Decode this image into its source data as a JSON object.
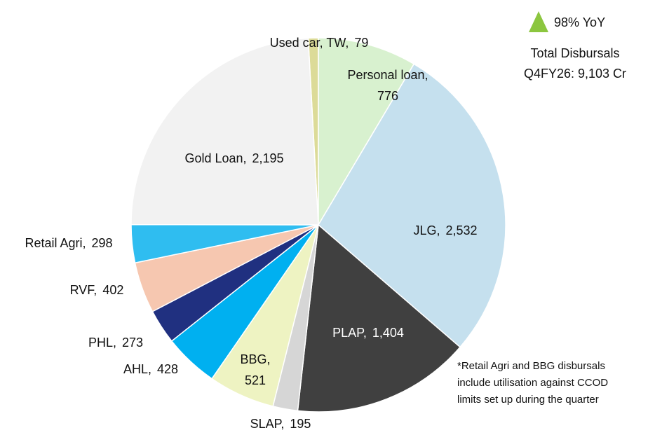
{
  "chart_data": {
    "type": "pie",
    "categories": [
      "Used car, TW,",
      "Personal loan,",
      "JLG,",
      "PLAP,",
      "SLAP,",
      "BBG,",
      "AHL,",
      "PHL,",
      "RVF,",
      "Retail Agri,",
      "Gold Loan,"
    ],
    "values": [
      79,
      776,
      2532,
      1404,
      195,
      521,
      428,
      273,
      402,
      298,
      2195
    ],
    "value_labels": [
      "79",
      "776",
      "2,532",
      "1,404",
      "195",
      "521",
      "428",
      "273",
      "402",
      "298",
      "2,195"
    ],
    "colors": [
      "#dcdb98",
      "#d8f1cf",
      "#c5e0ee",
      "#404040",
      "#d6d6d6",
      "#eef3c2",
      "#00b0f0",
      "#203080",
      "#f6c7b0",
      "#2fbdf0",
      "#f2f2f2"
    ],
    "yoy": "98% YoY",
    "annotation": [
      "Total Disbursals",
      "Q4FY26: 9,103 Cr"
    ],
    "footnote": [
      "*Retail Agri and BBG disbursals",
      "include utilisation against CCOD",
      "limits set up during the quarter"
    ]
  }
}
